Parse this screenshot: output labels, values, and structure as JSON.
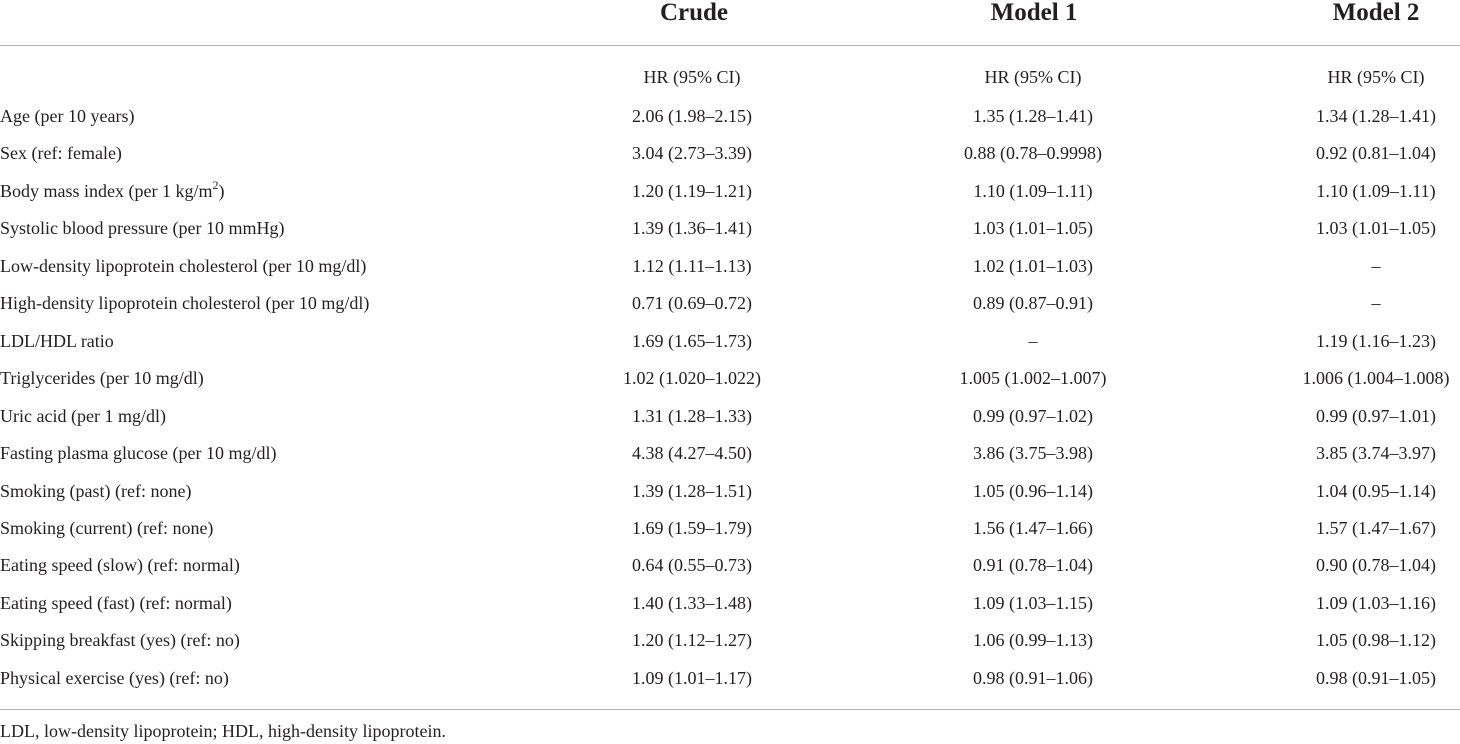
{
  "table": {
    "headers": [
      "Crude",
      "Model 1",
      "Model 2"
    ],
    "subheaders": [
      "HR (95% CI)",
      "HR (95% CI)",
      "HR (95% CI)"
    ],
    "rows": [
      {
        "label": "Age (per 10 years)",
        "crude": "2.06 (1.98–2.15)",
        "model1": "1.35 (1.28–1.41)",
        "model2": "1.34 (1.28–1.41)"
      },
      {
        "label": "Sex (ref: female)",
        "crude": "3.04 (2.73–3.39)",
        "model1": "0.88 (0.78–0.9998)",
        "model2": "0.92 (0.81–1.04)"
      },
      {
        "label": "Body mass index (per 1 kg/m",
        "label_sup": "2",
        "label_after": ")",
        "crude": "1.20 (1.19–1.21)",
        "model1": "1.10 (1.09–1.11)",
        "model2": "1.10 (1.09–1.11)"
      },
      {
        "label": "Systolic blood pressure (per 10 mmHg)",
        "crude": "1.39 (1.36–1.41)",
        "model1": "1.03 (1.01–1.05)",
        "model2": "1.03 (1.01–1.05)"
      },
      {
        "label": "Low-density lipoprotein cholesterol (per 10 mg/dl)",
        "crude": "1.12 (1.11–1.13)",
        "model1": "1.02 (1.01–1.03)",
        "model2": "–"
      },
      {
        "label": "High-density lipoprotein cholesterol (per 10 mg/dl)",
        "crude": "0.71 (0.69–0.72)",
        "model1": "0.89 (0.87–0.91)",
        "model2": "–"
      },
      {
        "label": "LDL/HDL ratio",
        "crude": "1.69 (1.65–1.73)",
        "model1": "–",
        "model2": "1.19 (1.16–1.23)"
      },
      {
        "label": "Triglycerides (per 10 mg/dl)",
        "crude": "1.02 (1.020–1.022)",
        "model1": "1.005 (1.002–1.007)",
        "model2": "1.006 (1.004–1.008)"
      },
      {
        "label": "Uric acid (per 1 mg/dl)",
        "crude": "1.31 (1.28–1.33)",
        "model1": "0.99 (0.97–1.02)",
        "model2": "0.99 (0.97–1.01)"
      },
      {
        "label": "Fasting plasma glucose (per 10 mg/dl)",
        "crude": "4.38 (4.27–4.50)",
        "model1": "3.86 (3.75–3.98)",
        "model2": "3.85 (3.74–3.97)"
      },
      {
        "label": "Smoking (past) (ref: none)",
        "crude": "1.39 (1.28–1.51)",
        "model1": "1.05 (0.96–1.14)",
        "model2": "1.04 (0.95–1.14)"
      },
      {
        "label": "Smoking (current) (ref: none)",
        "crude": "1.69 (1.59–1.79)",
        "model1": "1.56 (1.47–1.66)",
        "model2": "1.57 (1.47–1.67)"
      },
      {
        "label": "Eating speed (slow) (ref: normal)",
        "crude": "0.64 (0.55–0.73)",
        "model1": "0.91 (0.78–1.04)",
        "model2": "0.90 (0.78–1.04)"
      },
      {
        "label": "Eating speed (fast) (ref: normal)",
        "crude": "1.40 (1.33–1.48)",
        "model1": "1.09 (1.03–1.15)",
        "model2": "1.09 (1.03–1.16)"
      },
      {
        "label": "Skipping breakfast (yes) (ref: no)",
        "crude": "1.20 (1.12–1.27)",
        "model1": "1.06 (0.99–1.13)",
        "model2": "1.05 (0.98–1.12)"
      },
      {
        "label": "Physical exercise (yes) (ref: no)",
        "crude": "1.09 (1.01–1.17)",
        "model1": "0.98 (0.91–1.06)",
        "model2": "0.98 (0.91–1.05)"
      }
    ]
  },
  "footnote": "LDL, low-density lipoprotein; HDL, high-density lipoprotein."
}
